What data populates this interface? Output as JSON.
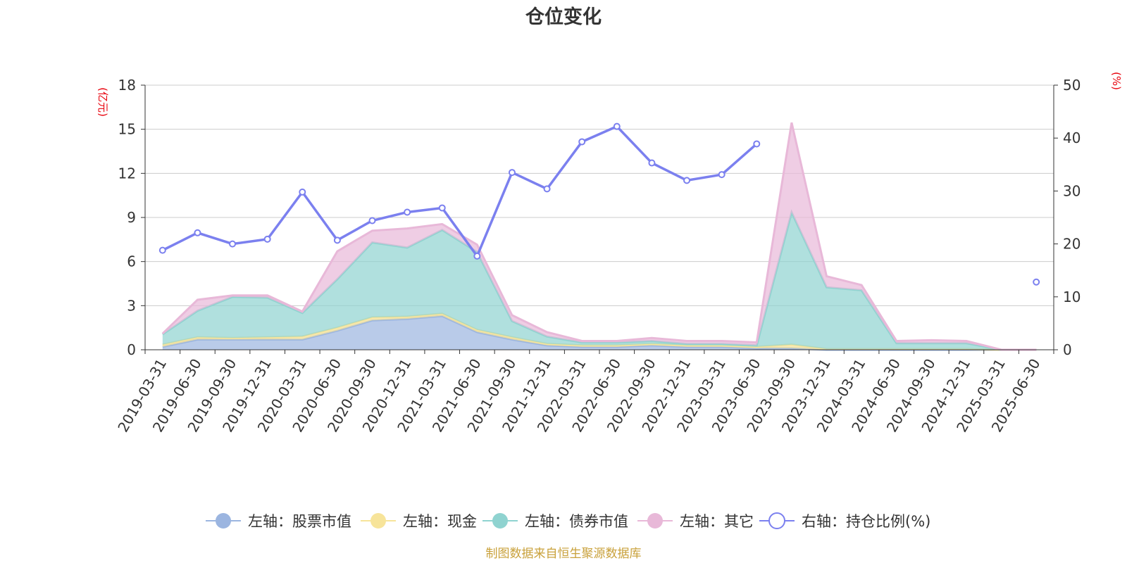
{
  "source_text": "制图数据来自恒生聚源数据库",
  "colors": {
    "stock": "#9bb5e0",
    "cash": "#f7e49a",
    "bond": "#8fd3d0",
    "other": "#e8b8d8",
    "ratio": "#7b80ef",
    "unit_label": "#e8000b",
    "source": "#c9a13b"
  },
  "chart_data": {
    "type": "area",
    "title": "仓位变化",
    "left_unit": "(亿元)",
    "right_unit": "(%)",
    "categories": [
      "2019-03-31",
      "2019-06-30",
      "2019-09-30",
      "2019-12-31",
      "2020-03-31",
      "2020-06-30",
      "2020-09-30",
      "2020-12-31",
      "2021-03-31",
      "2021-06-30",
      "2021-09-30",
      "2021-12-31",
      "2022-03-31",
      "2022-06-30",
      "2022-09-30",
      "2022-12-31",
      "2023-03-31",
      "2023-06-30",
      "2023-09-30",
      "2023-12-31",
      "2024-03-31",
      "2024-06-30",
      "2024-09-30",
      "2024-12-31",
      "2025-03-31",
      "2025-06-30"
    ],
    "left_axis": {
      "min": 0,
      "max": 18,
      "ticks": [
        "0",
        "3",
        "6",
        "9",
        "12",
        "15",
        "18"
      ]
    },
    "right_axis": {
      "min": 0,
      "max": 50,
      "ticks": [
        "0",
        "10",
        "20",
        "30",
        "40",
        "50"
      ]
    },
    "stacked_series": [
      {
        "key": "stock",
        "axis": "left",
        "values": [
          0.2,
          0.7,
          0.7,
          0.7,
          0.7,
          1.3,
          2.0,
          2.1,
          2.3,
          1.2,
          0.7,
          0.3,
          0.2,
          0.2,
          0.3,
          0.2,
          0.2,
          0.1,
          0.1,
          0.0,
          0.0,
          0.0,
          0.0,
          0.0,
          0.0,
          0.0
        ]
      },
      {
        "key": "cash",
        "axis": "left",
        "values": [
          0.15,
          0.15,
          0.1,
          0.15,
          0.2,
          0.2,
          0.2,
          0.15,
          0.15,
          0.15,
          0.15,
          0.1,
          0.1,
          0.1,
          0.1,
          0.1,
          0.1,
          0.1,
          0.25,
          0.05,
          0.05,
          0.05,
          0.05,
          0.05,
          0.0,
          0.0
        ]
      },
      {
        "key": "bond",
        "axis": "left",
        "values": [
          0.7,
          1.8,
          2.8,
          2.7,
          1.6,
          3.3,
          5.1,
          4.7,
          5.7,
          5.3,
          1.1,
          0.5,
          0.2,
          0.2,
          0.2,
          0.1,
          0.1,
          0.1,
          9.0,
          4.2,
          4.0,
          0.4,
          0.4,
          0.4,
          0.0,
          0.0
        ]
      },
      {
        "key": "other",
        "axis": "left",
        "values": [
          0.05,
          0.75,
          0.1,
          0.15,
          0.1,
          1.9,
          0.8,
          1.3,
          0.4,
          0.5,
          0.4,
          0.3,
          0.1,
          0.1,
          0.2,
          0.2,
          0.2,
          0.2,
          6.1,
          0.75,
          0.35,
          0.15,
          0.2,
          0.15,
          0.0,
          0.0
        ]
      }
    ],
    "line_series": {
      "key": "ratio",
      "axis": "right",
      "values": [
        18.8,
        22.1,
        20.0,
        20.9,
        29.8,
        20.7,
        24.4,
        26.0,
        26.8,
        17.7,
        33.5,
        30.4,
        39.3,
        42.2,
        35.3,
        32.0,
        33.1,
        38.9,
        null,
        null,
        null,
        null,
        null,
        null,
        null,
        12.8
      ]
    },
    "legend": [
      {
        "key": "stock",
        "label": "左轴：股票市值",
        "shape": "filled"
      },
      {
        "key": "cash",
        "label": "左轴：现金",
        "shape": "filled"
      },
      {
        "key": "bond",
        "label": "左轴：债券市值",
        "shape": "filled"
      },
      {
        "key": "other",
        "label": "左轴：其它",
        "shape": "filled"
      },
      {
        "key": "ratio",
        "label": "右轴：持仓比例(%)",
        "shape": "hollow"
      }
    ],
    "legend_position": "bottom",
    "grid": true
  }
}
